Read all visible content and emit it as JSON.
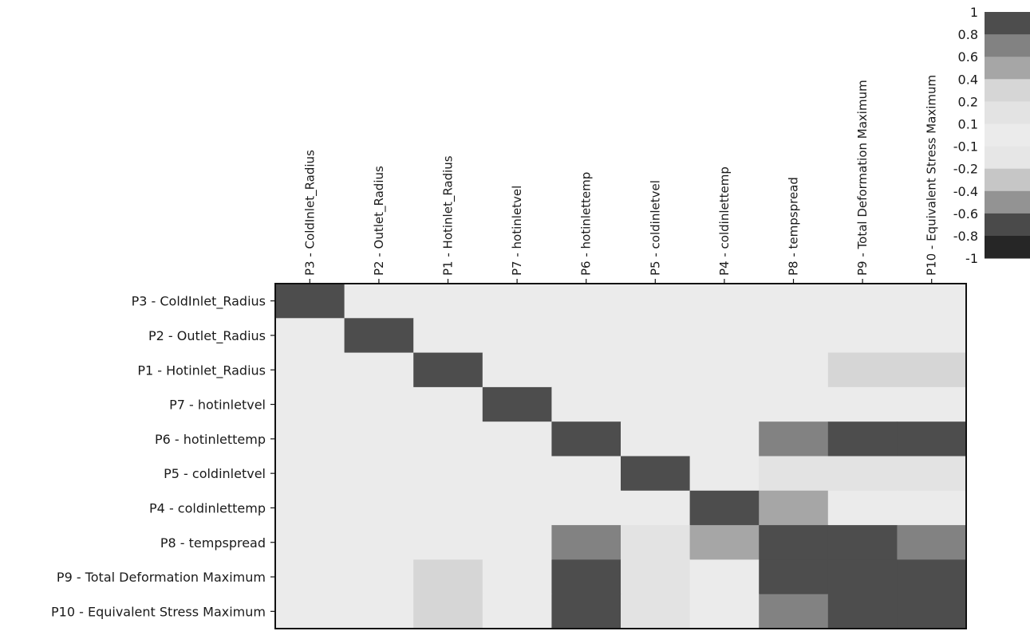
{
  "chart_data": {
    "type": "heatmap",
    "title": "",
    "xlabel": "",
    "ylabel": "",
    "parameters": [
      "P3 - ColdInlet_Radius",
      "P2 - Outlet_Radius",
      "P1 - Hotinlet_Radius",
      "P7 - hotinletvel",
      "P6 - hotinlettemp",
      "P5 - coldinletvel",
      "P4 - coldinlettemp",
      "P8 - tempspread",
      "P9 - Total Deformation Maximum",
      "P10 - Equivalent Stress Maximum"
    ],
    "matrix": [
      [
        1,
        0,
        0,
        0,
        0,
        0,
        0,
        0,
        0,
        0
      ],
      [
        0,
        1,
        0,
        0,
        0,
        0,
        0,
        0,
        0,
        0
      ],
      [
        0,
        0,
        1,
        0,
        0,
        0,
        0,
        0.05,
        0.25,
        0.25
      ],
      [
        0,
        0,
        0,
        1,
        0,
        0,
        0,
        0.05,
        0.05,
        0.05
      ],
      [
        0,
        0,
        0,
        0,
        1,
        0,
        0,
        0.7,
        1,
        1
      ],
      [
        0,
        0,
        0,
        0,
        0,
        1,
        0,
        0.15,
        0.15,
        0.15
      ],
      [
        0,
        0,
        0,
        0,
        0,
        0,
        1,
        0.5,
        0.05,
        0.05
      ],
      [
        0,
        0,
        0.05,
        0.05,
        0.7,
        0.15,
        0.5,
        1,
        1,
        0.7
      ],
      [
        0,
        0,
        0.25,
        0.05,
        1,
        0.15,
        0.05,
        1,
        1,
        1
      ],
      [
        0,
        0,
        0.25,
        0.05,
        1,
        0.15,
        0.05,
        0.7,
        1,
        1
      ]
    ],
    "colorbar": {
      "labels": [
        "1",
        "0.8",
        "0.6",
        "0.4",
        "0.2",
        "0.1",
        "-0.1",
        "-0.2",
        "-0.4",
        "-0.6",
        "-0.8",
        "-1"
      ],
      "bounds": [
        1,
        0.8,
        0.6,
        0.4,
        0.2,
        0.1,
        -0.1,
        -0.2,
        -0.4,
        -0.6,
        -0.8,
        -1
      ],
      "colors": [
        "#4d4d4d",
        "#828282",
        "#a6a6a6",
        "#d6d6d6",
        "#e3e3e3",
        "#ebebeb",
        "#e6e6e6",
        "#c6c6c6",
        "#939393",
        "#4a4a4a",
        "#262626"
      ]
    }
  }
}
